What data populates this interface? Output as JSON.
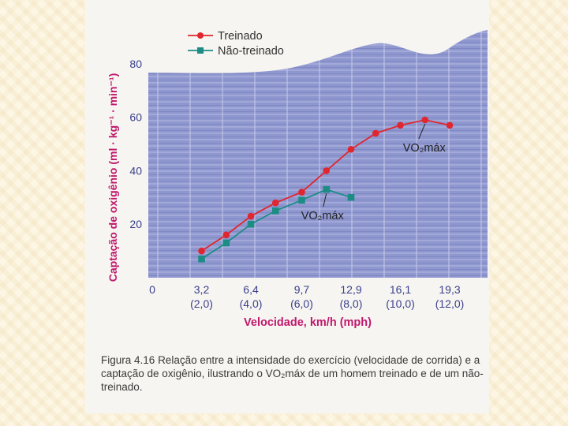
{
  "colors": {
    "trained": "#e0262e",
    "untrained": "#1c8c84",
    "axis_text": "#c0186c",
    "tick_text": "#3a3f8c",
    "plot_bg": "#8f97cf"
  },
  "chart_data": {
    "type": "line",
    "title": "",
    "ylabel": "Captação de oxigênio (ml · kg⁻¹ · min⁻¹)",
    "xlabel": "Velocidade, km/h (mph)",
    "ylim": [
      0,
      95
    ],
    "xlim": [
      0,
      21.5
    ],
    "y_ticks": [
      20,
      40,
      60,
      80
    ],
    "x_zero_label": "0",
    "x_tick_labels": [
      {
        "x": 3.2,
        "kmh": "3,2",
        "mph": "(2,0)"
      },
      {
        "x": 6.4,
        "kmh": "6,4",
        "mph": "(4,0)"
      },
      {
        "x": 9.7,
        "kmh": "9,7",
        "mph": "(6,0)"
      },
      {
        "x": 12.9,
        "kmh": "12,9",
        "mph": "(8,0)"
      },
      {
        "x": 16.1,
        "kmh": "16,1",
        "mph": "(10,0)"
      },
      {
        "x": 19.3,
        "kmh": "19,3",
        "mph": "(12,0)"
      }
    ],
    "series": [
      {
        "name": "Treinado",
        "marker": "circle",
        "x": [
          3.2,
          4.8,
          6.4,
          8.0,
          9.7,
          11.3,
          12.9,
          14.5,
          16.1,
          17.7,
          19.3
        ],
        "y": [
          10,
          16,
          23,
          28,
          32,
          40,
          48,
          54,
          57,
          59,
          57
        ]
      },
      {
        "name": "Não-treinado",
        "marker": "square",
        "x": [
          3.2,
          4.8,
          6.4,
          8.0,
          9.7,
          11.3,
          12.9
        ],
        "y": [
          7,
          13,
          20,
          25,
          29,
          33,
          30
        ]
      }
    ],
    "annotations": [
      {
        "text": "VO₂máx",
        "series": "Treinado",
        "point_x": 17.7,
        "point_y": 59
      },
      {
        "text": "VO₂máx",
        "series": "Não-treinado",
        "point_x": 11.3,
        "point_y": 33
      }
    ],
    "legend": [
      "Treinado",
      "Não-treinado"
    ]
  },
  "caption": {
    "figure_label": "Figura 4.16",
    "text": "Relação entre a intensidade do exercício (velocidade de corrida) e a captação de oxigênio, ilustrando o VO₂máx de um homem treinado e de um não-treinado."
  }
}
